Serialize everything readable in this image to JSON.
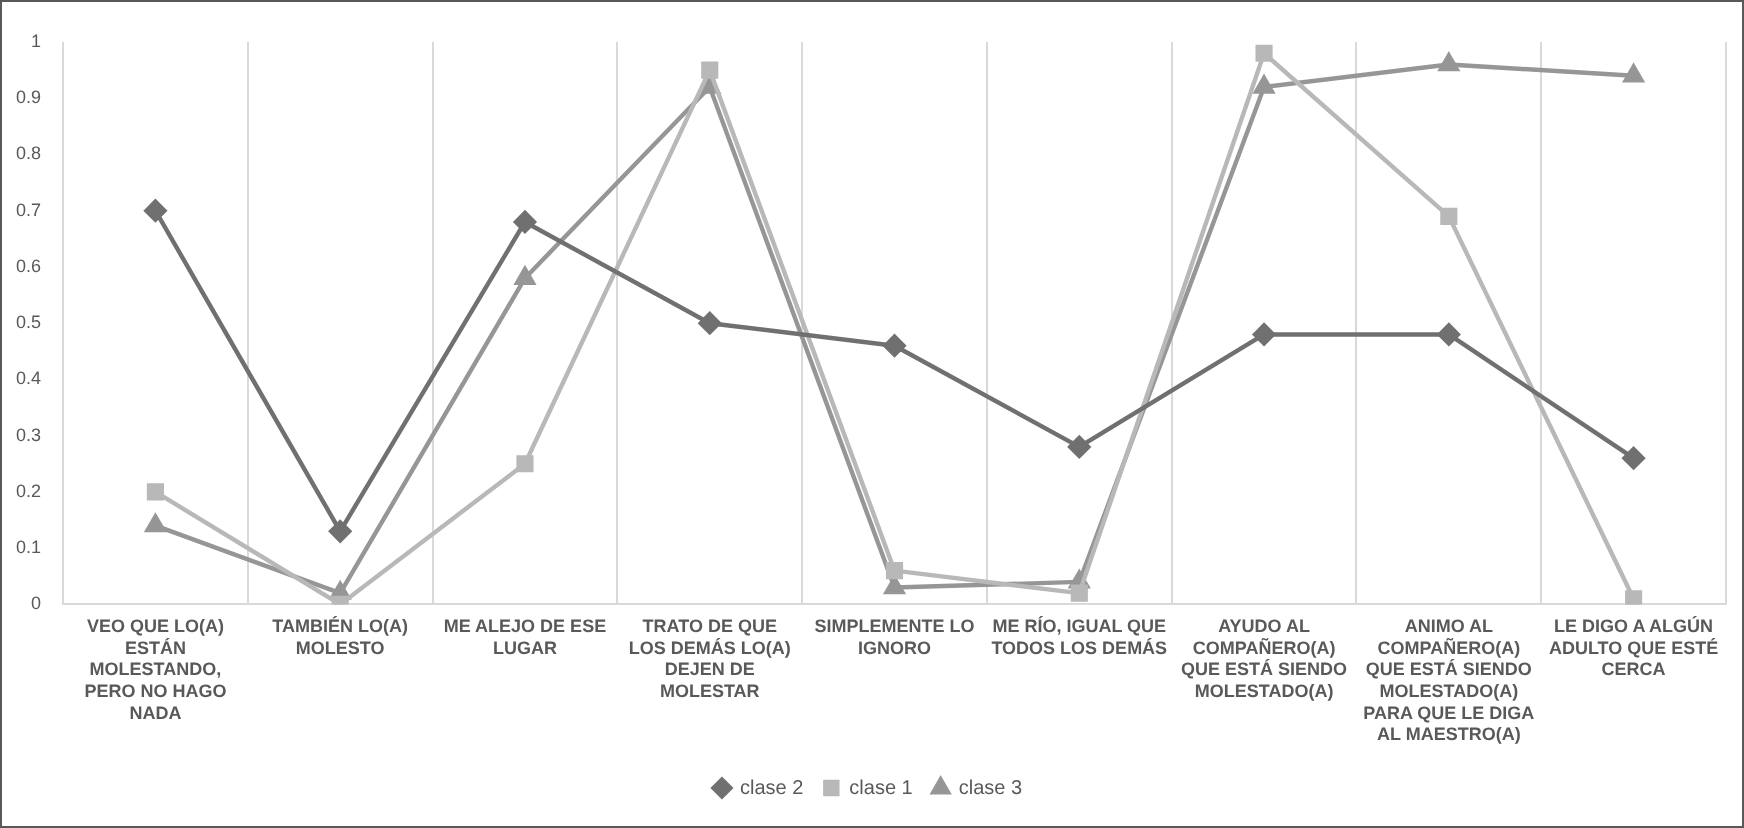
{
  "chart_data": {
    "type": "line",
    "categories": [
      "VEO QUE LO(A) ESTÁN MOLESTANDO, PERO NO HAGO NADA",
      "TAMBIÉN LO(A) MOLESTO",
      "ME ALEJO DE ESE LUGAR",
      "TRATO DE QUE LOS DEMÁS LO(A) DEJEN DE MOLESTAR",
      "SIMPLEMENTE LO IGNORO",
      "ME RÍO, IGUAL QUE TODOS LOS DEMÁS",
      "AYUDO AL COMPAÑERO(A) QUE ESTÁ SIENDO MOLESTADO(A)",
      "ANIMO AL COMPAÑERO(A) QUE ESTÁ SIENDO MOLESTADO(A) PARA QUE LE DIGA AL MAESTRO(A)",
      "LE DIGO A ALGÚN ADULTO QUE ESTÉ CERCA"
    ],
    "series": [
      {
        "name": "clase 2",
        "color": "#707070",
        "marker": "diamond",
        "values": [
          0.7,
          0.13,
          0.68,
          0.5,
          0.46,
          0.28,
          0.48,
          0.48,
          0.26
        ]
      },
      {
        "name": "clase 1",
        "color": "#b8b8b8",
        "marker": "square",
        "values": [
          0.2,
          0.0,
          0.25,
          0.95,
          0.06,
          0.02,
          0.98,
          0.69,
          0.01
        ]
      },
      {
        "name": "clase 3",
        "color": "#969696",
        "marker": "triangle",
        "values": [
          0.14,
          0.02,
          0.58,
          0.92,
          0.03,
          0.04,
          0.92,
          0.96,
          0.94
        ]
      }
    ],
    "ylim": [
      0,
      1
    ],
    "yticks": [
      0,
      0.1,
      0.2,
      0.3,
      0.4,
      0.5,
      0.6,
      0.7,
      0.8,
      0.9,
      1
    ],
    "grid": "x",
    "legend": "bottom",
    "line_style": "solid"
  }
}
